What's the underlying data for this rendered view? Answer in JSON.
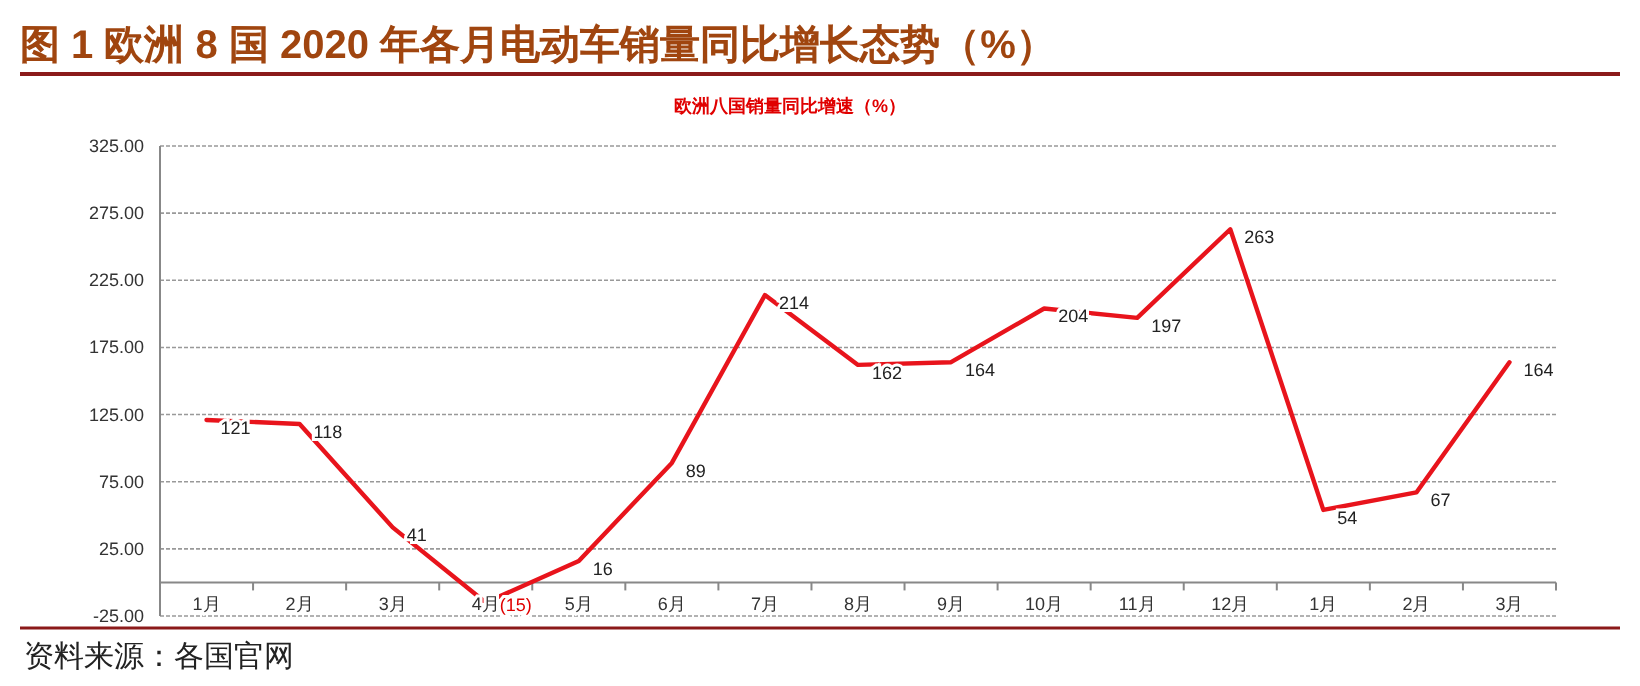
{
  "chart_data": {
    "type": "line",
    "title": "图 1 欧洲 8 国 2020 年各月电动车销量同比增长态势（%）",
    "subtitle": "欧洲八国销量同比增速（%）",
    "categories": [
      "1月",
      "2月",
      "3月",
      "4月",
      "5月",
      "6月",
      "7月",
      "8月",
      "9月",
      "10月",
      "11月",
      "12月",
      "1月",
      "2月",
      "3月"
    ],
    "values": [
      121,
      118,
      41,
      -15,
      16,
      89,
      214,
      162,
      164,
      204,
      197,
      263,
      54,
      67,
      164
    ],
    "value_labels": [
      "121",
      "118",
      "41",
      "(15)",
      "16",
      "89",
      "214",
      "162",
      "164",
      "204",
      "197",
      "263",
      "54",
      "67",
      "164"
    ],
    "color": "#e8141c",
    "ylim": [
      -25,
      325
    ],
    "yticks": [
      {
        "value": -25,
        "label": "-25.00"
      },
      {
        "value": 25,
        "label": "25.00"
      },
      {
        "value": 75,
        "label": "75.00"
      },
      {
        "value": 125,
        "label": "125.00"
      },
      {
        "value": 175,
        "label": "175.00"
      },
      {
        "value": 225,
        "label": "225.00"
      },
      {
        "value": 275,
        "label": "275.00"
      },
      {
        "value": 325,
        "label": "325.00"
      }
    ],
    "grid": "y",
    "annotations": [
      "资料来源：各国官网"
    ]
  }
}
